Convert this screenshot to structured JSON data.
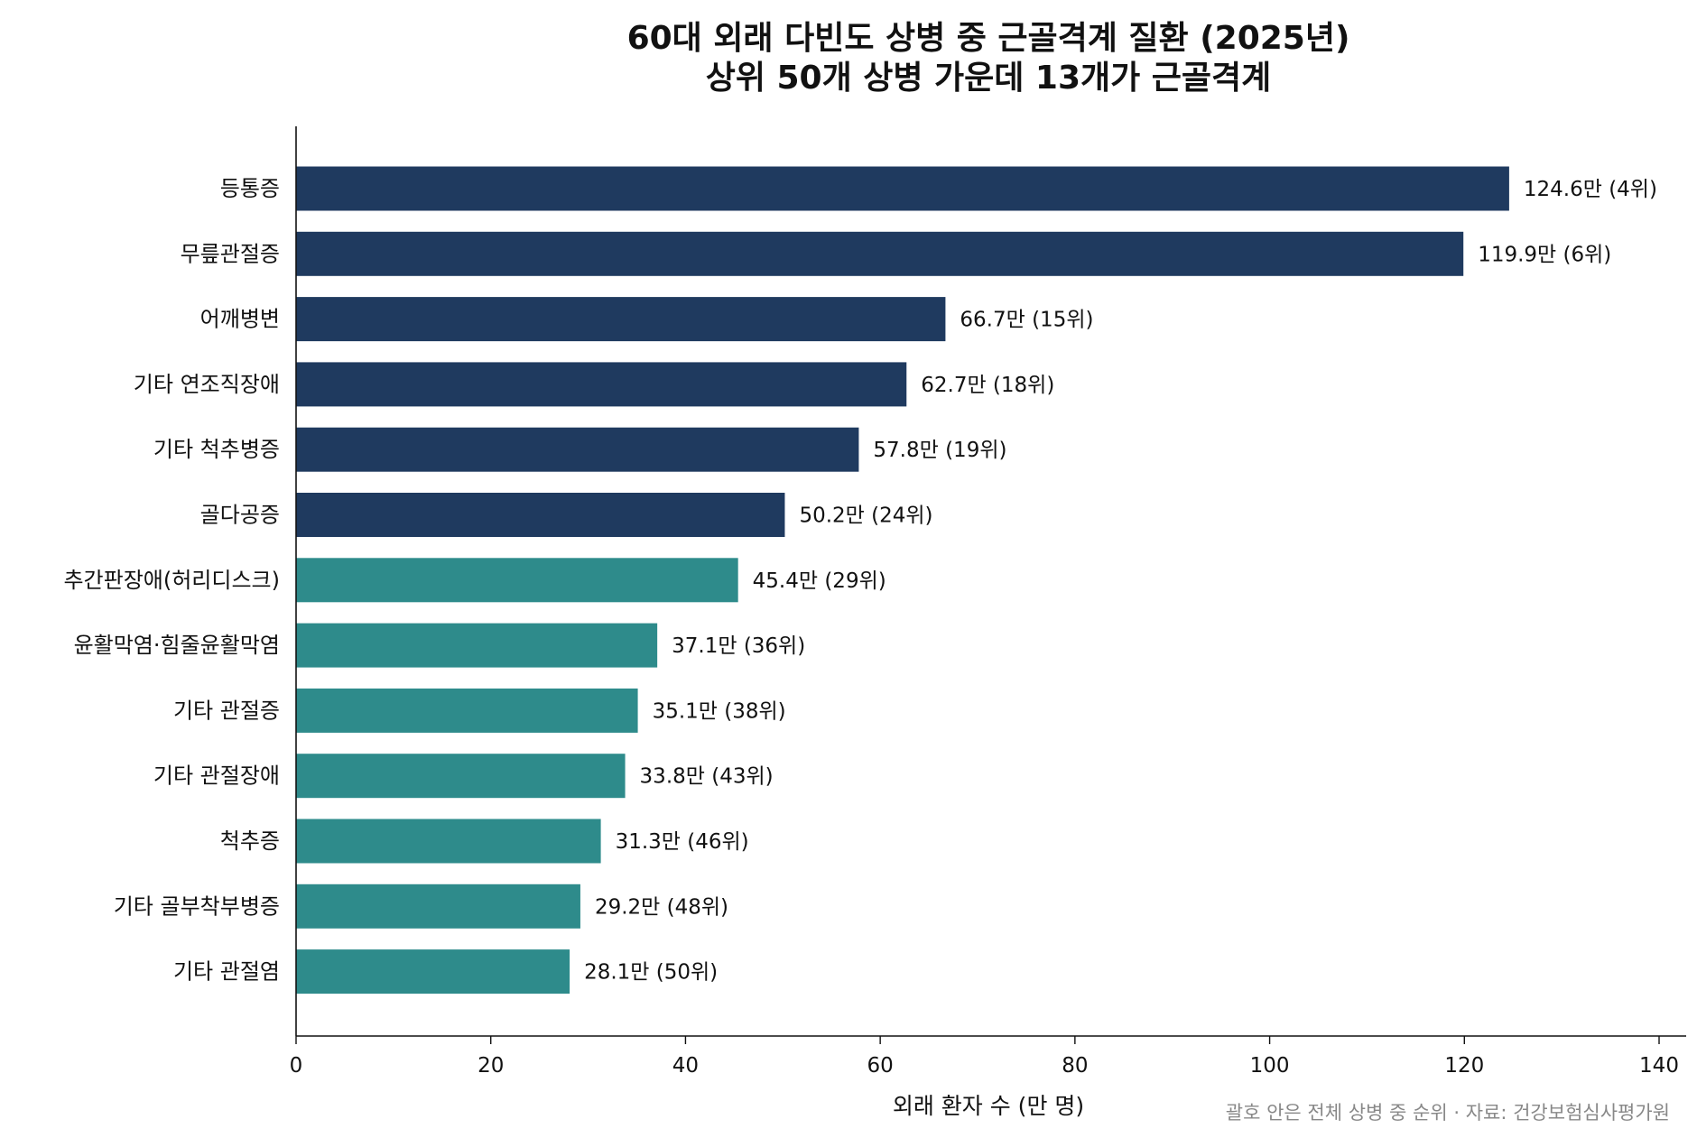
{
  "chart_data": {
    "type": "bar",
    "orientation": "horizontal",
    "title": "60대 외래 다빈도 상병 중 근골격계 질환 (2025년)",
    "subtitle": "상위 50개 상병 가운데 13개가 근골격계",
    "xlabel": "외래 환자 수 (만 명)",
    "xlim": [
      0,
      140
    ],
    "xticks": [
      0,
      20,
      40,
      60,
      80,
      100,
      120,
      140
    ],
    "grid": false,
    "legend": "none",
    "note": "괄호 안은 전체 상병 중 순위 · 자료: 건강보험심사평가원",
    "value_suffix": "만",
    "colors": {
      "top6": "#1f3a5f",
      "rest": "#2e8b8b"
    },
    "bars": [
      {
        "category": "등통증",
        "value": 124.6,
        "rank": "(4위)",
        "color": "#1f3a5f"
      },
      {
        "category": "무릎관절증",
        "value": 119.9,
        "rank": "(6위)",
        "color": "#1f3a5f"
      },
      {
        "category": "어깨병변",
        "value": 66.7,
        "rank": "(15위)",
        "color": "#1f3a5f"
      },
      {
        "category": "기타 연조직장애",
        "value": 62.7,
        "rank": "(18위)",
        "color": "#1f3a5f"
      },
      {
        "category": "기타 척추병증",
        "value": 57.8,
        "rank": "(19위)",
        "color": "#1f3a5f"
      },
      {
        "category": "골다공증",
        "value": 50.2,
        "rank": "(24위)",
        "color": "#1f3a5f"
      },
      {
        "category": "추간판장애(허리디스크)",
        "value": 45.4,
        "rank": "(29위)",
        "color": "#2e8b8b"
      },
      {
        "category": "윤활막염·힘줄윤활막염",
        "value": 37.1,
        "rank": "(36위)",
        "color": "#2e8b8b"
      },
      {
        "category": "기타 관절증",
        "value": 35.1,
        "rank": "(38위)",
        "color": "#2e8b8b"
      },
      {
        "category": "기타 관절장애",
        "value": 33.8,
        "rank": "(43위)",
        "color": "#2e8b8b"
      },
      {
        "category": "척추증",
        "value": 31.3,
        "rank": "(46위)",
        "color": "#2e8b8b"
      },
      {
        "category": "기타 골부착부병증",
        "value": 29.2,
        "rank": "(48위)",
        "color": "#2e8b8b"
      },
      {
        "category": "기타 관절염",
        "value": 28.1,
        "rank": "(50위)",
        "color": "#2e8b8b"
      }
    ]
  }
}
